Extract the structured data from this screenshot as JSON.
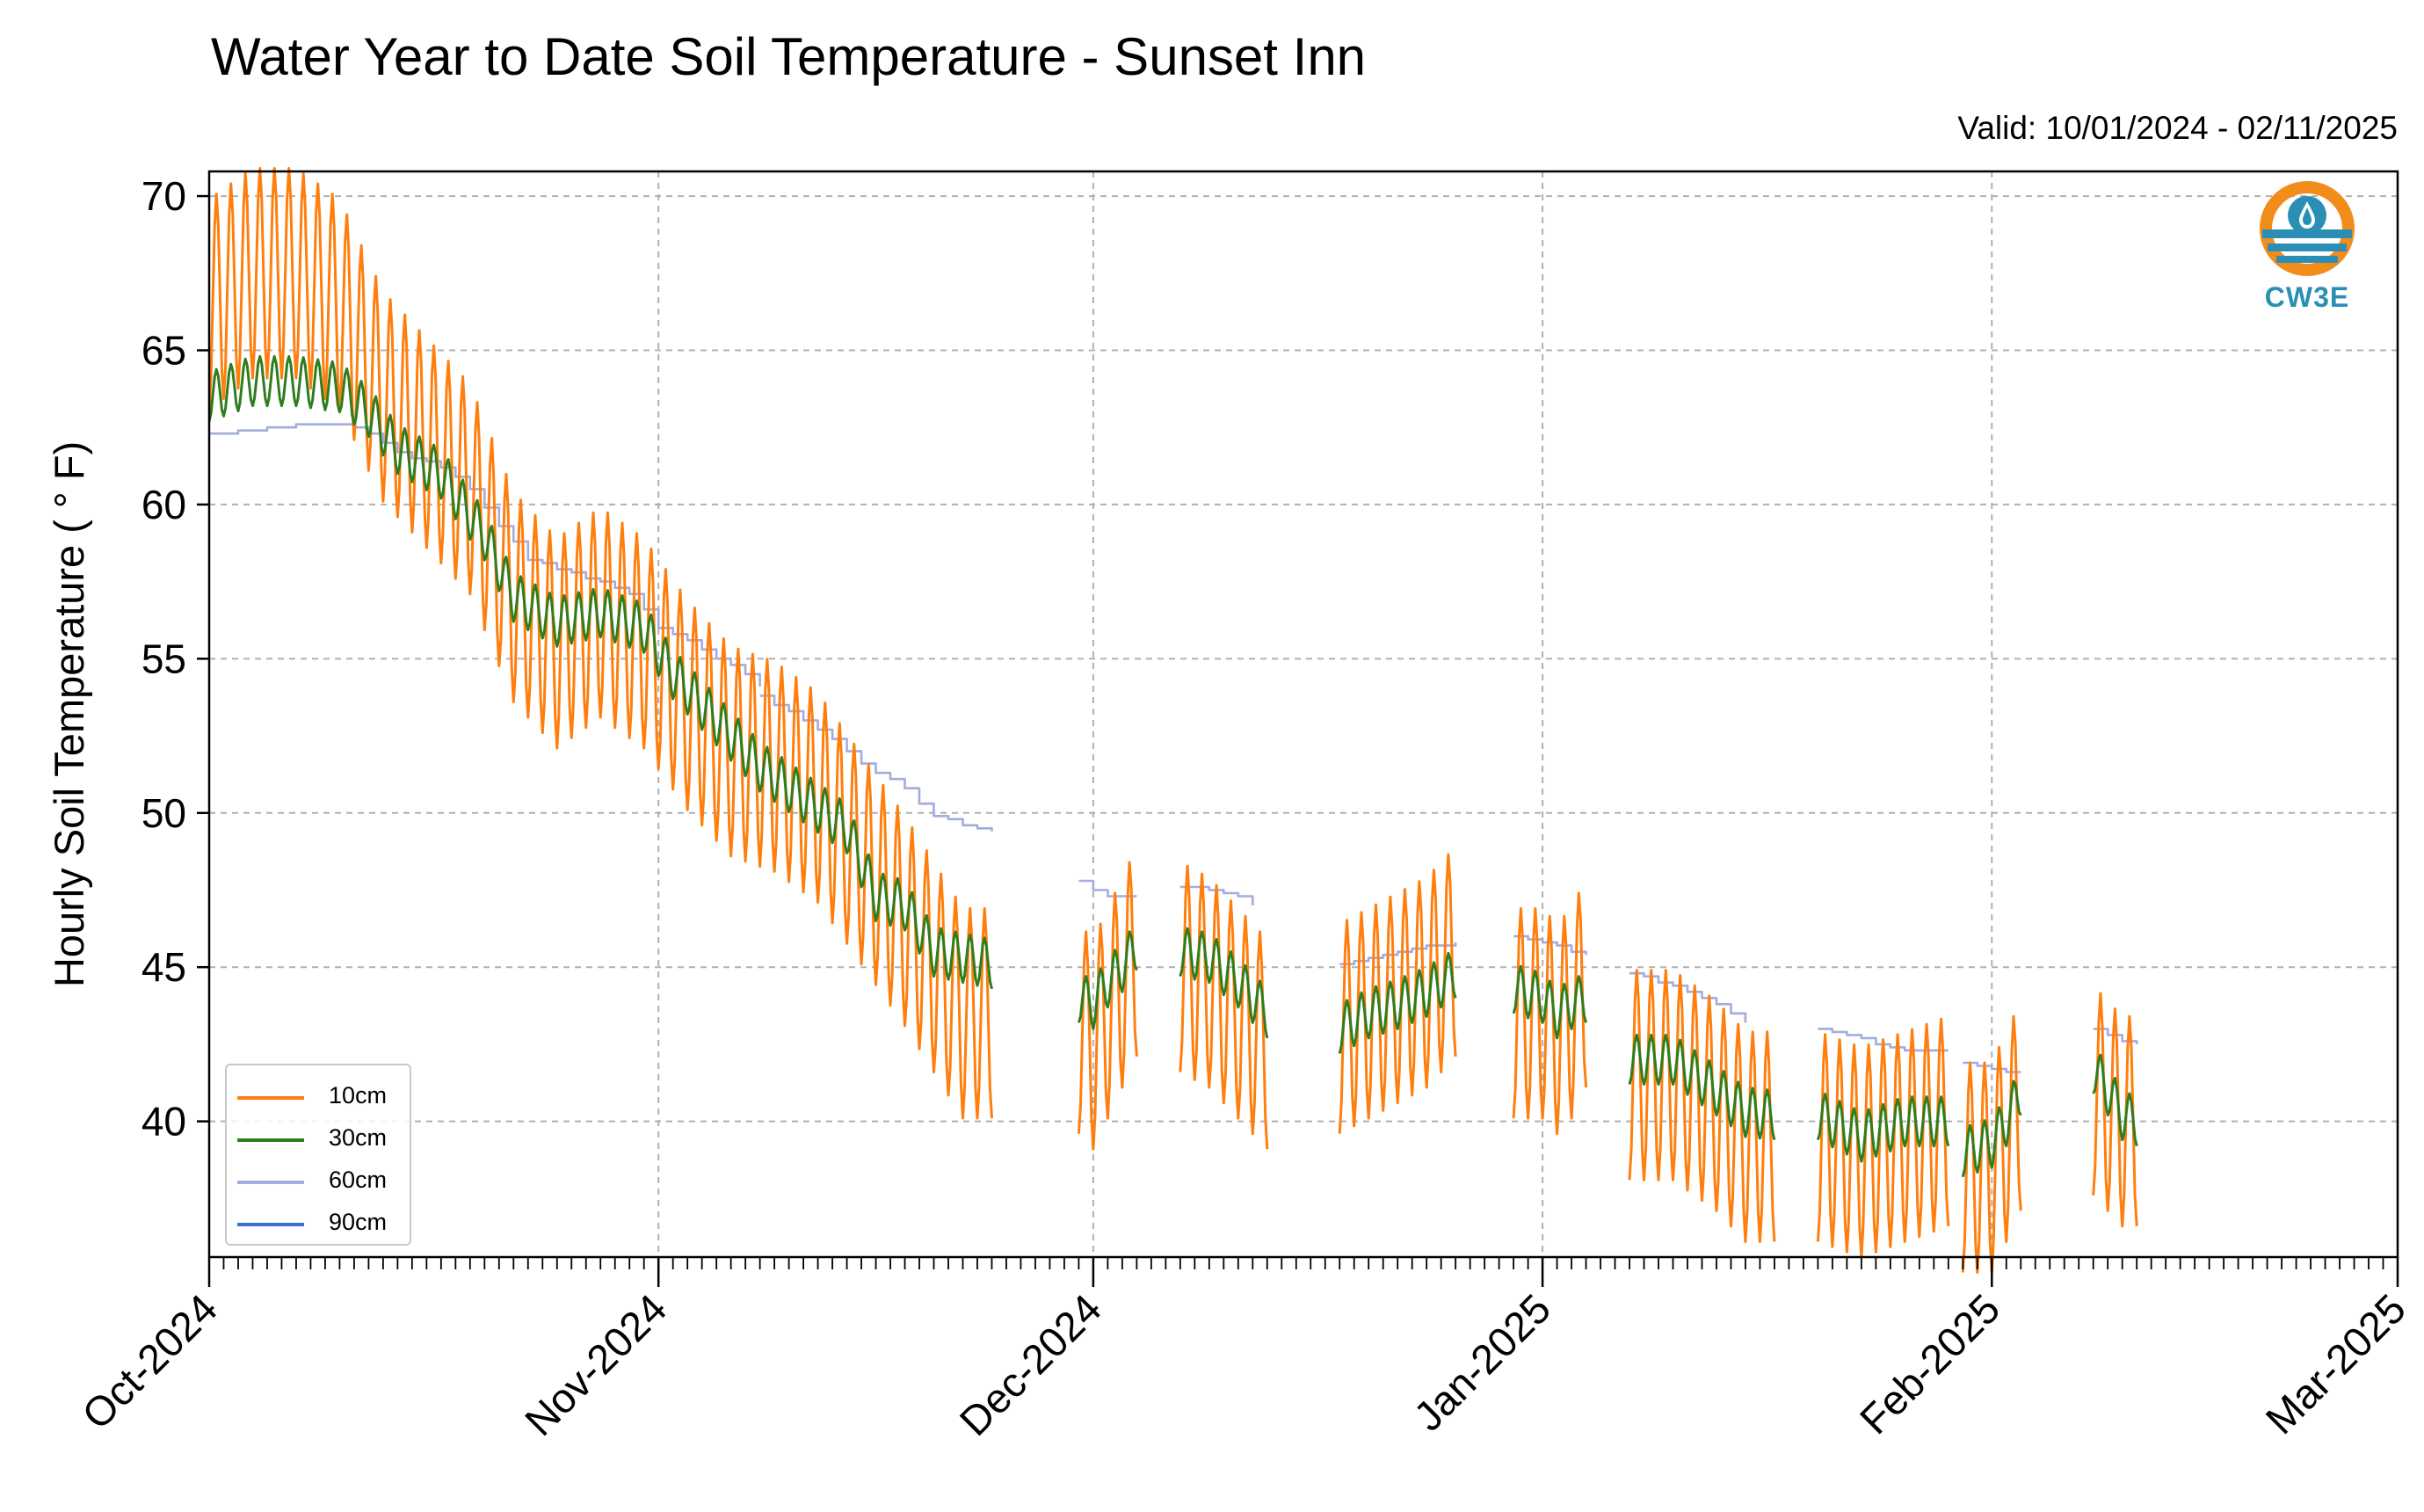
{
  "chart_data": {
    "type": "line",
    "title": "Water Year to Date Soil Temperature - Sunset Inn",
    "subtitle": "Valid: 10/01/2024 - 02/11/2025",
    "xlabel": "",
    "ylabel": "Hourly Soil Temperature ( ° F)",
    "xlim": [
      "2024-10-01",
      "2025-03-01"
    ],
    "ylim": [
      35.6,
      70.8
    ],
    "xticks": [
      {
        "date": "2024-10-01",
        "label": "Oct-2024"
      },
      {
        "date": "2024-11-01",
        "label": "Nov-2024"
      },
      {
        "date": "2024-12-01",
        "label": "Dec-2024"
      },
      {
        "date": "2025-01-01",
        "label": "Jan-2025"
      },
      {
        "date": "2025-02-01",
        "label": "Feb-2025"
      },
      {
        "date": "2025-03-01",
        "label": "Mar-2025"
      }
    ],
    "yticks": [
      40,
      45,
      50,
      55,
      60,
      65,
      70
    ],
    "grid": true,
    "legend_position": "lower-left",
    "series": [
      {
        "name": "10cm",
        "color": "#ff7f0e",
        "diurnal_amplitude": "large",
        "segments": [
          [
            [
              "2024-10-01",
              66.5
            ],
            [
              "2024-10-04",
              67.5
            ],
            [
              "2024-10-07",
              67.5
            ],
            [
              "2024-10-10",
              66.5
            ],
            [
              "2024-10-13",
              63.5
            ],
            [
              "2024-10-16",
              62.0
            ],
            [
              "2024-10-19",
              60.5
            ],
            [
              "2024-10-22",
              57.0
            ],
            [
              "2024-10-25",
              55.5
            ],
            [
              "2024-10-28",
              56.5
            ],
            [
              "2024-10-31",
              55.5
            ],
            [
              "2024-11-03",
              53.5
            ],
            [
              "2024-11-06",
              52.0
            ],
            [
              "2024-11-09",
              51.5
            ],
            [
              "2024-11-12",
              50.5
            ],
            [
              "2024-11-15",
              48.5
            ],
            [
              "2024-11-18",
              46.5
            ],
            [
              "2024-11-20",
              45.0
            ],
            [
              "2024-11-22",
              43.5
            ],
            [
              "2024-11-24",
              43.5
            ]
          ],
          [
            [
              "2024-11-30",
              43.0
            ],
            [
              "2024-12-01",
              42.5
            ],
            [
              "2024-12-02",
              43.5
            ],
            [
              "2024-12-03",
              44.5
            ],
            [
              "2024-12-04",
              45.5
            ]
          ],
          [
            [
              "2024-12-07",
              45.0
            ],
            [
              "2024-12-09",
              44.5
            ],
            [
              "2024-12-11",
              43.5
            ],
            [
              "2024-12-13",
              42.5
            ]
          ],
          [
            [
              "2024-12-18",
              43.0
            ],
            [
              "2024-12-20",
              43.5
            ],
            [
              "2024-12-22",
              44.0
            ],
            [
              "2024-12-24",
              44.5
            ],
            [
              "2024-12-26",
              45.5
            ]
          ],
          [
            [
              "2024-12-30",
              43.5
            ],
            [
              "2025-01-01",
              43.5
            ],
            [
              "2025-01-02",
              43.0
            ],
            [
              "2025-01-03",
              43.5
            ],
            [
              "2025-01-04",
              44.5
            ]
          ],
          [
            [
              "2025-01-07",
              41.5
            ],
            [
              "2025-01-10",
              41.5
            ],
            [
              "2025-01-13",
              40.5
            ],
            [
              "2025-01-15",
              39.5
            ],
            [
              "2025-01-17",
              39.5
            ]
          ],
          [
            [
              "2025-01-20",
              39.5
            ],
            [
              "2025-01-23",
              39.0
            ],
            [
              "2025-01-26",
              39.5
            ],
            [
              "2025-01-29",
              40.0
            ]
          ],
          [
            [
              "2025-01-30",
              38.5
            ],
            [
              "2025-02-01",
              38.5
            ],
            [
              "2025-02-02",
              39.5
            ],
            [
              "2025-02-03",
              40.5
            ]
          ],
          [
            [
              "2025-02-08",
              41.0
            ],
            [
              "2025-02-09",
              40.5
            ],
            [
              "2025-02-10",
              40.0
            ],
            [
              "2025-02-11",
              40.0
            ]
          ]
        ]
      },
      {
        "name": "30cm",
        "color": "#2e7d1e",
        "diurnal_amplitude": "small",
        "segments": [
          [
            [
              "2024-10-01",
              63.5
            ],
            [
              "2024-10-04",
              64.0
            ],
            [
              "2024-10-07",
              64.0
            ],
            [
              "2024-10-10",
              63.8
            ],
            [
              "2024-10-12",
              63.0
            ],
            [
              "2024-10-14",
              61.8
            ],
            [
              "2024-10-17",
              61.0
            ],
            [
              "2024-10-20",
              59.0
            ],
            [
              "2024-10-22",
              57.0
            ],
            [
              "2024-10-25",
              56.2
            ],
            [
              "2024-10-28",
              56.5
            ],
            [
              "2024-10-31",
              56.0
            ],
            [
              "2024-11-02",
              54.5
            ],
            [
              "2024-11-05",
              53.0
            ],
            [
              "2024-11-08",
              51.5
            ],
            [
              "2024-11-11",
              50.5
            ],
            [
              "2024-11-14",
              49.5
            ],
            [
              "2024-11-16",
              47.3
            ],
            [
              "2024-11-18",
              47.0
            ],
            [
              "2024-11-20",
              45.5
            ],
            [
              "2024-11-22",
              45.3
            ],
            [
              "2024-11-24",
              45.1
            ]
          ],
          [
            [
              "2024-11-30",
              44.0
            ],
            [
              "2024-12-01",
              43.8
            ],
            [
              "2024-12-02",
              44.5
            ],
            [
              "2024-12-03",
              45.0
            ],
            [
              "2024-12-04",
              45.7
            ]
          ],
          [
            [
              "2024-12-07",
              45.5
            ],
            [
              "2024-12-09",
              45.3
            ],
            [
              "2024-12-11",
              44.5
            ],
            [
              "2024-12-13",
              43.5
            ]
          ],
          [
            [
              "2024-12-18",
              43.0
            ],
            [
              "2024-12-20",
              43.5
            ],
            [
              "2024-12-22",
              43.8
            ],
            [
              "2024-12-24",
              44.2
            ],
            [
              "2024-12-26",
              44.8
            ]
          ],
          [
            [
              "2024-12-30",
              44.3
            ],
            [
              "2025-01-01",
              44.0
            ],
            [
              "2025-01-02",
              43.5
            ],
            [
              "2025-01-03",
              43.8
            ],
            [
              "2025-01-04",
              44.0
            ]
          ],
          [
            [
              "2025-01-07",
              42.0
            ],
            [
              "2025-01-10",
              42.0
            ],
            [
              "2025-01-13",
              41.0
            ],
            [
              "2025-01-15",
              40.3
            ],
            [
              "2025-01-17",
              40.2
            ]
          ],
          [
            [
              "2025-01-20",
              40.2
            ],
            [
              "2025-01-23",
              39.5
            ],
            [
              "2025-01-26",
              40.0
            ],
            [
              "2025-01-29",
              40.0
            ]
          ],
          [
            [
              "2025-01-30",
              39.0
            ],
            [
              "2025-02-01",
              39.3
            ],
            [
              "2025-02-02",
              40.0
            ],
            [
              "2025-02-03",
              41.0
            ]
          ],
          [
            [
              "2025-02-08",
              41.7
            ],
            [
              "2025-02-09",
              41.0
            ],
            [
              "2025-02-10",
              40.2
            ],
            [
              "2025-02-11",
              40.0
            ]
          ]
        ]
      },
      {
        "name": "60cm",
        "color": "#a3acdf",
        "diurnal_amplitude": "none",
        "segments": [
          [
            [
              "2024-10-01",
              62.3
            ],
            [
              "2024-10-04",
              62.4
            ],
            [
              "2024-10-07",
              62.6
            ],
            [
              "2024-10-10",
              62.6
            ],
            [
              "2024-10-12",
              62.3
            ],
            [
              "2024-10-14",
              61.7
            ],
            [
              "2024-10-17",
              61.2
            ],
            [
              "2024-10-19",
              60.5
            ],
            [
              "2024-10-21",
              59.3
            ],
            [
              "2024-10-23",
              58.2
            ],
            [
              "2024-10-25",
              57.9
            ],
            [
              "2024-10-28",
              57.5
            ],
            [
              "2024-10-30",
              57.1
            ],
            [
              "2024-11-01",
              56.0
            ],
            [
              "2024-11-03",
              55.6
            ],
            [
              "2024-11-05",
              55.0
            ],
            [
              "2024-11-07",
              54.5
            ],
            [
              "2024-11-08",
              54.1
            ]
          ],
          [
            [
              "2024-11-08",
              53.8
            ],
            [
              "2024-11-11",
              53.0
            ],
            [
              "2024-11-13",
              52.4
            ],
            [
              "2024-11-15",
              51.6
            ],
            [
              "2024-11-18",
              50.8
            ],
            [
              "2024-11-20",
              49.9
            ],
            [
              "2024-11-22",
              49.6
            ],
            [
              "2024-11-24",
              49.4
            ]
          ],
          [
            [
              "2024-11-30",
              47.8
            ],
            [
              "2024-12-01",
              47.5
            ],
            [
              "2024-12-02",
              47.3
            ],
            [
              "2024-12-04",
              47.3
            ]
          ],
          [
            [
              "2024-12-07",
              47.6
            ],
            [
              "2024-12-09",
              47.5
            ],
            [
              "2024-12-11",
              47.3
            ],
            [
              "2024-12-12",
              47.0
            ]
          ],
          [
            [
              "2024-12-18",
              45.1
            ],
            [
              "2024-12-20",
              45.3
            ],
            [
              "2024-12-23",
              45.6
            ],
            [
              "2024-12-26",
              45.8
            ]
          ],
          [
            [
              "2024-12-30",
              46.0
            ],
            [
              "2025-01-01",
              45.8
            ],
            [
              "2025-01-03",
              45.5
            ],
            [
              "2025-01-04",
              45.4
            ]
          ],
          [
            [
              "2025-01-07",
              44.8
            ],
            [
              "2025-01-09",
              44.5
            ],
            [
              "2025-01-11",
              44.2
            ],
            [
              "2025-01-13",
              43.8
            ],
            [
              "2025-01-15",
              43.2
            ]
          ],
          [
            [
              "2025-01-20",
              43.0
            ],
            [
              "2025-01-22",
              42.8
            ],
            [
              "2025-01-24",
              42.5
            ],
            [
              "2025-01-26",
              42.3
            ],
            [
              "2025-01-29",
              42.3
            ]
          ],
          [
            [
              "2025-01-30",
              41.9
            ],
            [
              "2025-02-01",
              41.7
            ],
            [
              "2025-02-02",
              41.6
            ],
            [
              "2025-02-03",
              41.6
            ]
          ],
          [
            [
              "2025-02-08",
              43.0
            ],
            [
              "2025-02-09",
              42.8
            ],
            [
              "2025-02-10",
              42.6
            ],
            [
              "2025-02-11",
              42.5
            ]
          ]
        ]
      },
      {
        "name": "90cm",
        "color": "#3b6fd6",
        "diurnal_amplitude": "none",
        "segments": []
      }
    ]
  },
  "logo": {
    "text": "CW3E",
    "ring_color": "#f28c1a",
    "water_color": "#2b8fb5"
  }
}
